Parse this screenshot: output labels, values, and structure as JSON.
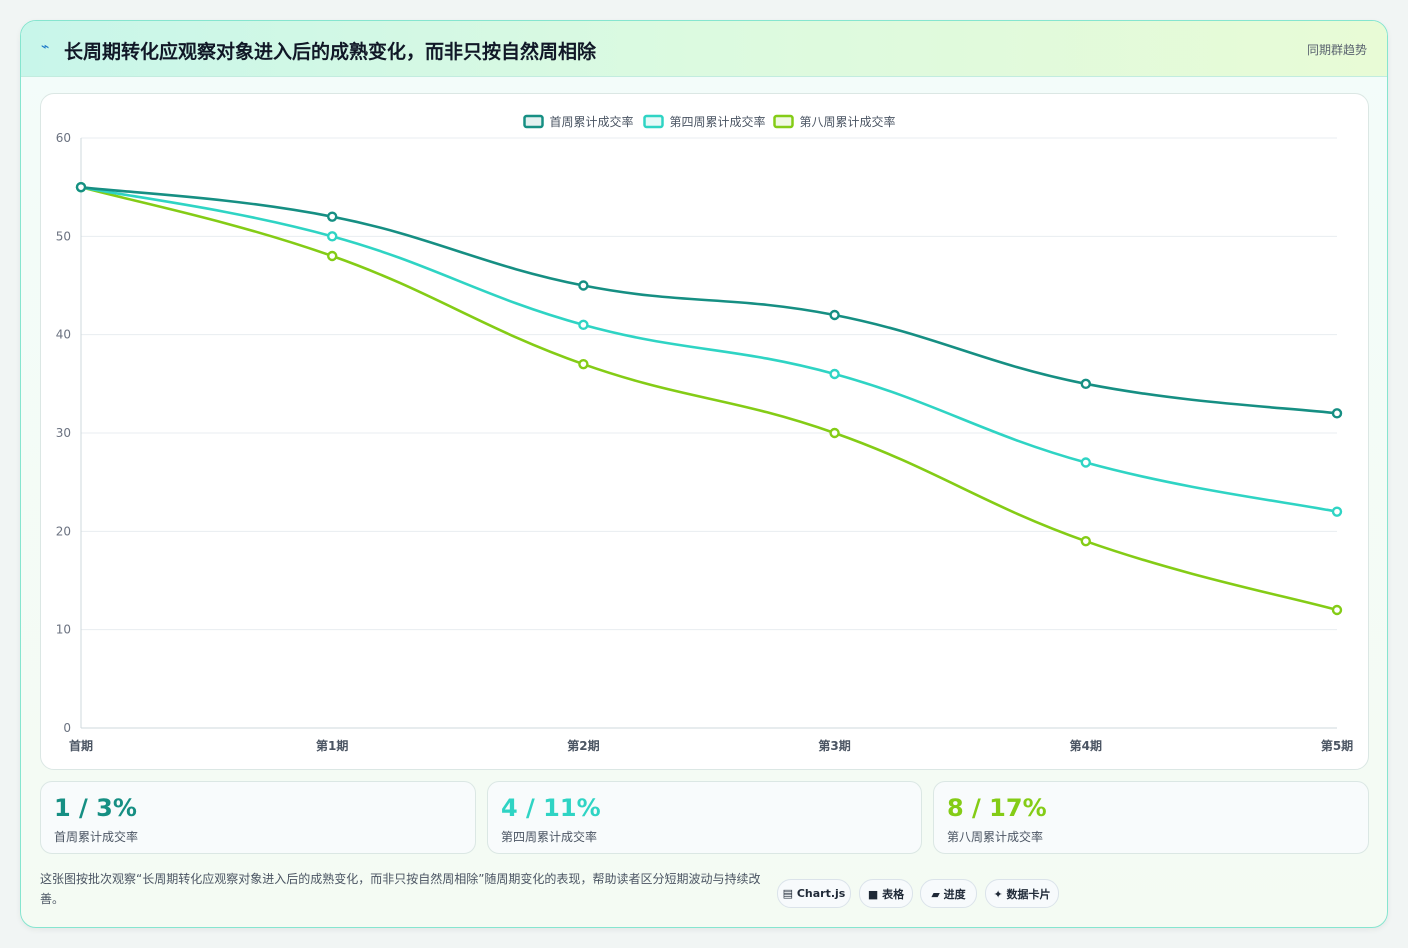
{
  "header": {
    "icon": "lightning-icon",
    "title": "长周期转化应观察对象进入后的成熟变化，而非只按自然周相除",
    "tag": "同期群趋势"
  },
  "chart_data": {
    "type": "line",
    "categories": [
      "首期",
      "第1期",
      "第2期",
      "第3期",
      "第4期",
      "第5期"
    ],
    "series": [
      {
        "name": "首周累计成交率",
        "color": "#168f83",
        "values": [
          55,
          52,
          45,
          42,
          35,
          32
        ]
      },
      {
        "name": "第四周累计成交率",
        "color": "#2fd4c4",
        "values": [
          55,
          50,
          41,
          36,
          27,
          22
        ]
      },
      {
        "name": "第八周累计成交率",
        "color": "#84cc16",
        "values": [
          55,
          48,
          37,
          30,
          19,
          12
        ]
      }
    ],
    "ylim": [
      0,
      60
    ],
    "yticks": [
      0,
      10,
      20,
      30,
      40,
      50,
      60
    ],
    "legend": "top-center",
    "grid": true
  },
  "kpis": [
    {
      "value": "1 / 3%",
      "label": "首周累计成交率",
      "color": "#168f83"
    },
    {
      "value": "4 / 11%",
      "label": "第四周累计成交率",
      "color": "#2fd4c4"
    },
    {
      "value": "8 / 17%",
      "label": "第八周累计成交率",
      "color": "#84cc16"
    }
  ],
  "description": "这张图按批次观察“长周期转化应观察对象进入后的成熟变化，而非只按自然周相除”随周期变化的表现，帮助读者区分短期波动与持续改善。",
  "pills": [
    {
      "label": "▤ Chart.js",
      "icon": "chart-icon"
    },
    {
      "label": "■ 表格",
      "icon": "table-icon"
    },
    {
      "label": "▰ 进度",
      "icon": "progress-icon"
    },
    {
      "label": "✦ 数据卡片",
      "icon": "sparkle-icon"
    }
  ]
}
